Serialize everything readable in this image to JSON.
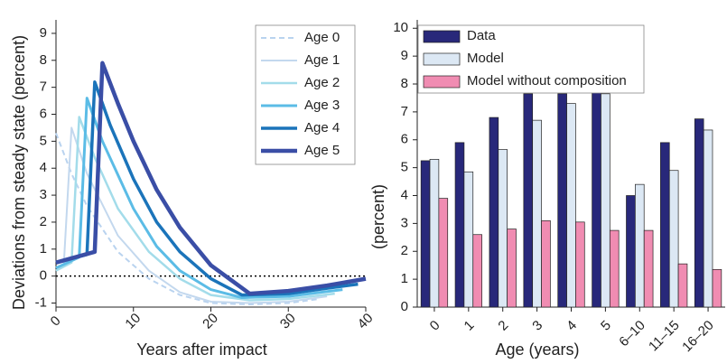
{
  "chart_data": [
    {
      "type": "line",
      "y_label": "Deviations from steady state (percent)",
      "x_label": "Years after impact",
      "xlim": [
        0,
        40
      ],
      "ylim": [
        -1.15,
        9.5
      ],
      "xticks": [
        0,
        10,
        20,
        30,
        40
      ],
      "yticks": [
        -1,
        0,
        1,
        2,
        3,
        4,
        5,
        6,
        7,
        8,
        9
      ],
      "reference_line": 0,
      "legend": "upper right",
      "series": [
        {
          "name": "Age 0",
          "color": "#b9d3ef",
          "dashed": true,
          "width": 2,
          "x": [
            0,
            2,
            4,
            8,
            12,
            16,
            20,
            25,
            30,
            34
          ],
          "values": [
            5.3,
            3.8,
            2.6,
            0.9,
            -0.1,
            -0.7,
            -1.0,
            -1.05,
            -1.0,
            -0.85
          ]
        },
        {
          "name": "Age 1",
          "color": "#c3d8ee",
          "dashed": false,
          "width": 2,
          "x": [
            0,
            1,
            2,
            4,
            8,
            12,
            16,
            20,
            25,
            30,
            35
          ],
          "values": [
            0.2,
            0.4,
            5.5,
            3.8,
            1.5,
            0.2,
            -0.6,
            -0.95,
            -1.0,
            -0.95,
            -0.75
          ]
        },
        {
          "name": "Age 2",
          "color": "#a3dcea",
          "dashed": false,
          "width": 2.5,
          "x": [
            0,
            2,
            3,
            5,
            8,
            12,
            16,
            20,
            25,
            30,
            36
          ],
          "values": [
            0.2,
            0.5,
            5.9,
            4.4,
            2.5,
            0.9,
            -0.1,
            -0.7,
            -0.9,
            -0.85,
            -0.65
          ]
        },
        {
          "name": "Age 3",
          "color": "#5bbce6",
          "dashed": false,
          "width": 3,
          "x": [
            0,
            3,
            4,
            6,
            10,
            13,
            16,
            20,
            24,
            30,
            37
          ],
          "values": [
            0.3,
            0.7,
            6.6,
            5.0,
            2.5,
            1.1,
            0.2,
            -0.5,
            -0.8,
            -0.75,
            -0.5
          ]
        },
        {
          "name": "Age 4",
          "color": "#1b74ba",
          "dashed": false,
          "width": 3.5,
          "x": [
            0,
            4,
            5,
            7,
            10,
            13,
            16,
            20,
            24,
            30,
            35,
            39
          ],
          "values": [
            0.5,
            0.8,
            7.2,
            5.6,
            3.6,
            2.0,
            0.9,
            -0.1,
            -0.7,
            -0.65,
            -0.45,
            -0.3
          ]
        },
        {
          "name": "Age 5",
          "color": "#3a4ea6",
          "dashed": false,
          "width": 4.5,
          "x": [
            0,
            5,
            6,
            8,
            10,
            13,
            16,
            20,
            25,
            30,
            35,
            40
          ],
          "values": [
            0.5,
            0.9,
            7.9,
            6.4,
            5.0,
            3.2,
            1.8,
            0.4,
            -0.65,
            -0.55,
            -0.35,
            -0.1
          ]
        }
      ]
    },
    {
      "type": "bar",
      "y_label": "(percent)",
      "x_label": "Age (years)",
      "categories": [
        "0",
        "1",
        "2",
        "3",
        "4",
        "5",
        "6–10",
        "11–15",
        "16–20"
      ],
      "ylim": [
        0,
        10.3
      ],
      "yticks": [
        0,
        1,
        2,
        3,
        4,
        5,
        6,
        7,
        8,
        9,
        10
      ],
      "legend": "upper left",
      "series": [
        {
          "name": "Data",
          "color": "#28287a",
          "values": [
            5.25,
            5.9,
            6.8,
            7.65,
            7.65,
            7.75,
            4.0,
            5.9,
            6.75
          ]
        },
        {
          "name": "Model",
          "color": "#dce8f4",
          "values": [
            5.3,
            4.85,
            5.65,
            6.7,
            7.3,
            7.65,
            4.4,
            4.9,
            6.35
          ]
        },
        {
          "name": "Model without composition",
          "color": "#f08cb2",
          "values": [
            3.9,
            2.6,
            2.8,
            3.1,
            3.05,
            2.75,
            2.75,
            1.55,
            1.35
          ]
        }
      ]
    }
  ]
}
